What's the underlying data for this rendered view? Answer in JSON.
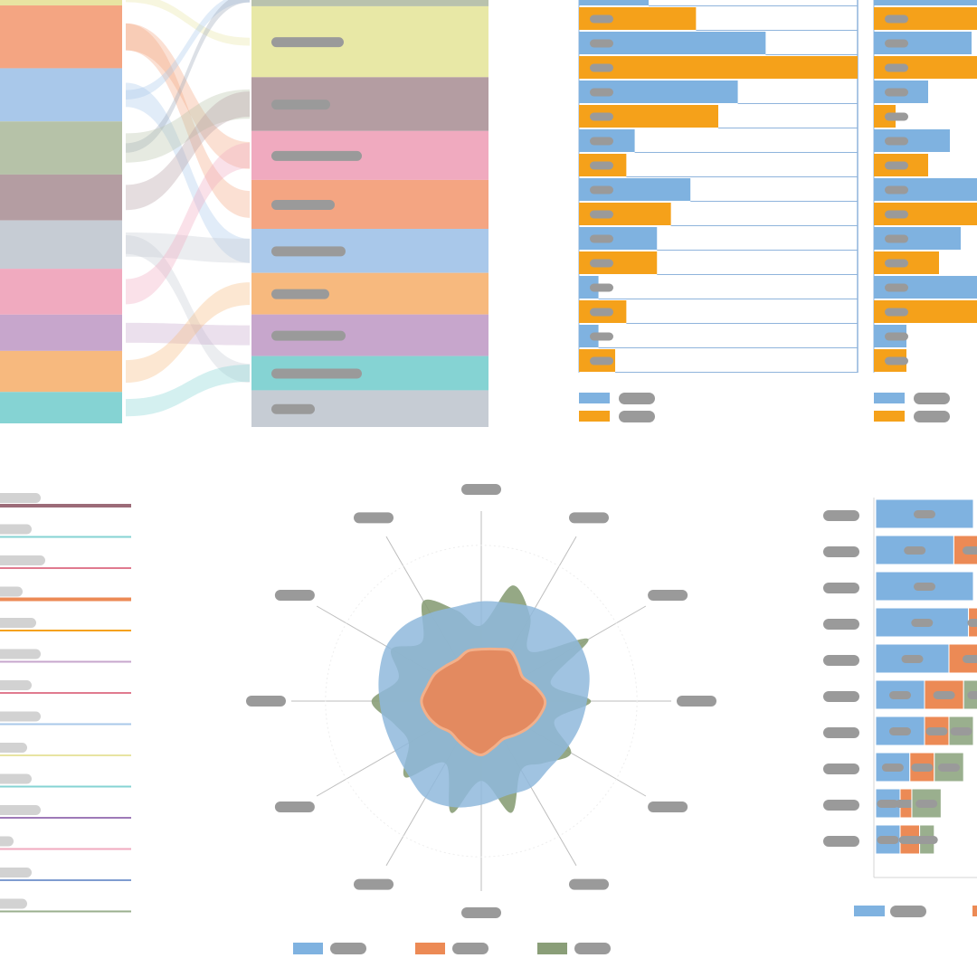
{
  "colors": {
    "placeholder_text": "#9a9a9a",
    "placeholder_text_light": "#d2d2d2",
    "blue": "#7fb2e0",
    "orange": "#f5a11a",
    "radar_blue": "#8fb8dc",
    "radar_orange": "#e8885a",
    "radar_green": "#8a9e78",
    "stack_blue": "#7fb2e0",
    "stack_orange": "#ec8a55",
    "stack_green": "#9aaf8e",
    "axis_line": "#8fb4dc",
    "spoke": "#bdbdbd"
  },
  "chart_data": [
    {
      "type": "sankey",
      "left_nodes": [
        {
          "color": "#e8e4a2",
          "weight": 0.6
        },
        {
          "color": "#f4a582",
          "weight": 2.6
        },
        {
          "color": "#a9c8ea",
          "weight": 2.2
        },
        {
          "color": "#b6c2a8",
          "weight": 2.2
        },
        {
          "color": "#b49da2",
          "weight": 1.9
        },
        {
          "color": "#c6ccd4",
          "weight": 2.0
        },
        {
          "color": "#f0aabf",
          "weight": 1.9
        },
        {
          "color": "#c7a6cc",
          "weight": 1.5
        },
        {
          "color": "#f7b97e",
          "weight": 1.7
        },
        {
          "color": "#85d3d3",
          "weight": 1.3
        }
      ],
      "right_nodes": [
        {
          "color": "#b9c2ad",
          "weight": 0.7
        },
        {
          "color": "#e8e8a6",
          "weight": 2.9
        },
        {
          "color": "#b49da2",
          "weight": 2.2
        },
        {
          "color": "#f0aabf",
          "weight": 2.0
        },
        {
          "color": "#f4a582",
          "weight": 2.0
        },
        {
          "color": "#a9c8ea",
          "weight": 1.8
        },
        {
          "color": "#f7b97e",
          "weight": 1.7
        },
        {
          "color": "#c7a6cc",
          "weight": 1.7
        },
        {
          "color": "#85d3d3",
          "weight": 1.4
        },
        {
          "color": "#c6ccd4",
          "weight": 1.5
        }
      ],
      "links": [
        {
          "from": 0,
          "to": 1,
          "color": "#e8e4a2"
        },
        {
          "from": 1,
          "to": 3,
          "color": "#f4a582"
        },
        {
          "from": 1,
          "to": 4,
          "color": "#f4a582"
        },
        {
          "from": 2,
          "to": 0,
          "color": "#a9c8ea"
        },
        {
          "from": 2,
          "to": 5,
          "color": "#a9c8ea"
        },
        {
          "from": 3,
          "to": 0,
          "color": "#9aa7b8"
        },
        {
          "from": 3,
          "to": 2,
          "color": "#b6c2a8"
        },
        {
          "from": 4,
          "to": 2,
          "color": "#b49da2"
        },
        {
          "from": 5,
          "to": 5,
          "color": "#c6ccd4"
        },
        {
          "from": 5,
          "to": 8,
          "color": "#c6ccd4"
        },
        {
          "from": 6,
          "to": 3,
          "color": "#f0aabf"
        },
        {
          "from": 7,
          "to": 7,
          "color": "#c7a6cc"
        },
        {
          "from": 8,
          "to": 6,
          "color": "#f7b97e"
        },
        {
          "from": 9,
          "to": 8,
          "color": "#85d3d3"
        }
      ]
    },
    {
      "type": "bar",
      "orientation": "horizontal",
      "series_colors": [
        "#7fb2e0",
        "#f5a11a"
      ],
      "values": [
        [
          0.25,
          0.42
        ],
        [
          0.67,
          1.0
        ],
        [
          0.57,
          0.5
        ],
        [
          0.2,
          0.17
        ],
        [
          0.4,
          0.33
        ],
        [
          0.28,
          0.28
        ],
        [
          0.07,
          0.17
        ],
        [
          0.07,
          0.13
        ]
      ],
      "xlim": [
        0,
        1
      ],
      "legend_position": "bottom-left"
    },
    {
      "type": "bar",
      "orientation": "horizontal",
      "series_colors": [
        "#7fb2e0",
        "#f5a11a"
      ],
      "values": [
        [
          0.95,
          0.95
        ],
        [
          0.9,
          0.95
        ],
        [
          0.5,
          0.2
        ],
        [
          0.7,
          0.5
        ],
        [
          0.95,
          0.95
        ],
        [
          0.8,
          0.6
        ],
        [
          0.95,
          0.95
        ],
        [
          0.3,
          0.3
        ]
      ],
      "xlim": [
        0,
        1
      ],
      "legend_position": "bottom-left"
    },
    {
      "type": "line",
      "series_colors": [
        "#9c6b78",
        "#85d3d3",
        "#e07a8f",
        "#ec8a55",
        "#f5a11a",
        "#c7a6cc",
        "#e07a8f",
        "#a9c8ea",
        "#e8e4a2",
        "#85d3d3",
        "#9e7ab8",
        "#f0aabf",
        "#7f9cd0",
        "#9aaf8e"
      ],
      "label_widths": [
        0.45,
        0.35,
        0.5,
        0.25,
        0.4,
        0.45,
        0.35,
        0.45,
        0.3,
        0.35,
        0.45,
        0.15,
        0.35,
        0.3
      ]
    },
    {
      "type": "radar",
      "axes_count": 12,
      "series": [
        {
          "color": "#8a9e78",
          "values": [
            0.38,
            0.6,
            0.49,
            0.35,
            0.62,
            0.36,
            0.55,
            0.38,
            0.52,
            0.44,
            0.4,
            0.58,
            0.4,
            0.58,
            0.36,
            0.54,
            0.42,
            0.45,
            0.55,
            0.43,
            0.52,
            0.42,
            0.58,
            0.47
          ]
        },
        {
          "color": "#8fb8dc",
          "values": [
            0.5,
            0.51,
            0.54,
            0.56,
            0.57,
            0.56,
            0.53,
            0.51,
            0.49,
            0.48,
            0.5,
            0.49,
            0.52,
            0.55,
            0.56,
            0.52,
            0.5,
            0.5,
            0.51,
            0.53,
            0.55,
            0.54,
            0.51,
            0.49
          ]
        },
        {
          "color": "#e8885a",
          "values": [
            0.26,
            0.27,
            0.29,
            0.26,
            0.24,
            0.28,
            0.32,
            0.3,
            0.27,
            0.24,
            0.22,
            0.24,
            0.27,
            0.25,
            0.23,
            0.22,
            0.25,
            0.28,
            0.3,
            0.28,
            0.27,
            0.25,
            0.24,
            0.26
          ]
        }
      ],
      "legend_position": "bottom"
    },
    {
      "type": "bar",
      "orientation": "horizontal",
      "stacked": true,
      "series_colors": [
        "#7fb2e0",
        "#ec8a55",
        "#9aaf8e"
      ],
      "values": [
        [
          1.0,
          0,
          0
        ],
        [
          0.8,
          0.4,
          0
        ],
        [
          1.0,
          0,
          0
        ],
        [
          0.95,
          0.2,
          0
        ],
        [
          0.75,
          0.5,
          0
        ],
        [
          0.5,
          0.4,
          0.3
        ],
        [
          0.5,
          0.25,
          0.25
        ],
        [
          0.35,
          0.25,
          0.3
        ],
        [
          0.25,
          0.12,
          0.3
        ],
        [
          0.25,
          0.2,
          0.15
        ]
      ],
      "xlim": [
        0,
        1
      ],
      "legend_position": "bottom"
    }
  ]
}
